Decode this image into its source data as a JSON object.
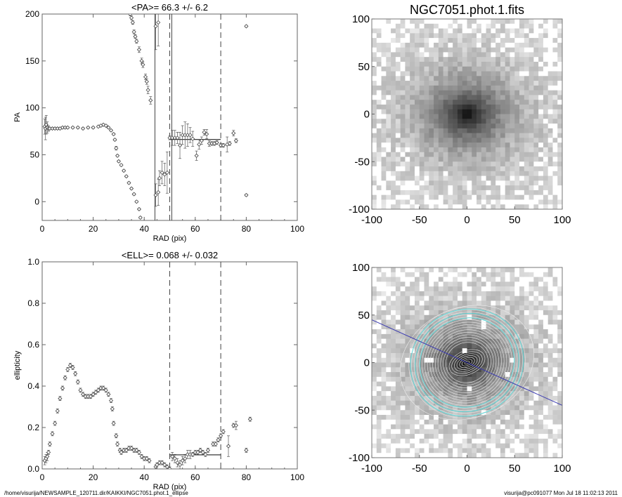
{
  "footer": {
    "path": "/home/visurija/NEWSAMPLE_120711.dir/KAIKKI/NGC7051.phot.1_ellipse",
    "stamp": "visurija@pc091077  Mon Jul 18 11:02:13 2011"
  },
  "chart_data": [
    {
      "id": "pa",
      "type": "scatter",
      "title": "<PA>=  66.3 +/-   6.2",
      "xlabel": "RAD (pix)",
      "ylabel": "PA",
      "xlim": [
        0,
        100
      ],
      "ylim": [
        -20,
        200
      ],
      "xticks": [
        "0",
        "20",
        "40",
        "60",
        "80",
        "100"
      ],
      "xtick_values": [
        0,
        20,
        40,
        60,
        80,
        100
      ],
      "yticks": [
        "0",
        "50",
        "100",
        "150",
        "200"
      ],
      "ytick_values": [
        0,
        50,
        100,
        150,
        200
      ],
      "vlines_solid": [
        44.2,
        50.8
      ],
      "vlines_dashed": [
        50,
        70
      ],
      "mean_line": {
        "x": [
          50,
          70
        ],
        "y": 66.3
      },
      "series": [
        {
          "name": "inner",
          "points": [
            [
              1,
              80,
              8
            ],
            [
              1.3,
              78,
              12
            ],
            [
              1.6,
              82,
              10
            ],
            [
              2,
              79,
              6
            ],
            [
              2.5,
              78,
              3
            ],
            [
              3,
              78,
              1
            ],
            [
              4,
              78,
              1
            ],
            [
              5,
              78,
              1
            ],
            [
              6,
              78,
              1
            ],
            [
              7,
              78,
              1
            ],
            [
              8,
              79,
              1
            ],
            [
              9,
              79,
              1
            ],
            [
              10,
              79,
              1
            ],
            [
              12,
              79,
              1
            ],
            [
              14,
              79,
              1
            ],
            [
              16,
              78,
              1
            ],
            [
              18,
              79,
              1
            ],
            [
              20,
              79,
              1
            ],
            [
              22,
              80,
              1
            ],
            [
              23,
              81,
              1
            ],
            [
              24,
              82,
              1
            ],
            [
              25,
              81,
              1
            ],
            [
              26,
              79,
              1
            ],
            [
              27,
              76,
              1
            ],
            [
              28,
              72,
              1
            ],
            [
              28.5,
              66,
              1
            ],
            [
              29,
              57,
              2
            ],
            [
              29.5,
              49,
              1
            ],
            [
              30,
              43,
              1
            ],
            [
              31,
              39,
              1
            ],
            [
              32,
              33,
              1
            ],
            [
              33,
              27,
              1
            ],
            [
              34,
              20,
              1
            ],
            [
              35,
              14,
              1
            ],
            [
              36,
              8,
              1
            ],
            [
              37,
              0,
              1
            ],
            [
              38,
              -8,
              1
            ],
            [
              38.5,
              -17,
              1
            ]
          ]
        },
        {
          "name": "wrap",
          "points": [
            [
              34.5,
              200,
              2
            ],
            [
              35,
              196,
              2
            ],
            [
              35.5,
              191,
              2
            ],
            [
              36,
              181,
              2
            ],
            [
              36.5,
              176,
              2
            ],
            [
              37,
              171,
              2
            ],
            [
              38,
              162,
              3
            ],
            [
              39,
              150,
              3
            ],
            [
              39.5,
              146,
              3
            ],
            [
              40.5,
              133,
              3
            ],
            [
              41,
              128,
              3
            ],
            [
              41.5,
              119,
              4
            ],
            [
              42.5,
              108,
              4
            ]
          ]
        },
        {
          "name": "outer",
          "points": [
            [
              44.5,
              7,
              12
            ],
            [
              45.5,
              10,
              14
            ],
            [
              46,
              25,
              8
            ],
            [
              47,
              31,
              12
            ],
            [
              48,
              29,
              12
            ],
            [
              49,
              31,
              22
            ],
            [
              44.5,
              187,
              25
            ],
            [
              45.5,
              191,
              25
            ],
            [
              50,
              68,
              2
            ],
            [
              51,
              68,
              8
            ],
            [
              52,
              68,
              8
            ],
            [
              53,
              68,
              6
            ],
            [
              54,
              60,
              14
            ],
            [
              55,
              71,
              10
            ],
            [
              56,
              71,
              14
            ],
            [
              57,
              71,
              12
            ],
            [
              58,
              71,
              8
            ],
            [
              59,
              67,
              8
            ],
            [
              60.5,
              49,
              5
            ],
            [
              61.5,
              61,
              5
            ],
            [
              62.5,
              65,
              4
            ],
            [
              63.5,
              74,
              3
            ],
            [
              64.5,
              72,
              5
            ],
            [
              65.5,
              62,
              3
            ],
            [
              66.5,
              62,
              2
            ],
            [
              67.5,
              62,
              2
            ],
            [
              68.5,
              63,
              2
            ],
            [
              70,
              60,
              2
            ],
            [
              71,
              60,
              2
            ],
            [
              72.5,
              61,
              8
            ],
            [
              73.5,
              62,
              2
            ],
            [
              75,
              73,
              3
            ],
            [
              76,
              65,
              2
            ],
            [
              80,
              187,
              1
            ],
            [
              80,
              7,
              1
            ]
          ]
        }
      ]
    },
    {
      "id": "ell",
      "type": "scatter",
      "title": "<ELL>= 0.068 +/-  0.032",
      "xlabel": "RAD (pix)",
      "ylabel": "ellipticity",
      "xlim": [
        0,
        100
      ],
      "ylim": [
        0,
        1
      ],
      "xticks": [
        "0",
        "20",
        "40",
        "60",
        "80",
        "100"
      ],
      "xtick_values": [
        0,
        20,
        40,
        60,
        80,
        100
      ],
      "yticks": [
        "0.0",
        "0.2",
        "0.4",
        "0.6",
        "0.8",
        "1.0"
      ],
      "ytick_values": [
        0,
        0.2,
        0.4,
        0.6,
        0.8,
        1.0
      ],
      "vlines_dashed": [
        50,
        70
      ],
      "mean_line": {
        "x": [
          50,
          70
        ],
        "y": 0.068
      },
      "series": [
        {
          "name": "ellipticity",
          "points": [
            [
              1,
              0.04,
              0.02
            ],
            [
              1.5,
              0.05,
              0.02
            ],
            [
              2,
              0.06,
              0.02
            ],
            [
              2.5,
              0.08,
              0.01
            ],
            [
              3,
              0.12,
              0.01
            ],
            [
              4,
              0.17,
              0.01
            ],
            [
              5,
              0.22,
              0.01
            ],
            [
              6,
              0.28,
              0.01
            ],
            [
              7,
              0.34,
              0.01
            ],
            [
              8,
              0.39,
              0.01
            ],
            [
              9,
              0.44,
              0.01
            ],
            [
              10,
              0.48,
              0.01
            ],
            [
              11,
              0.5,
              0.01
            ],
            [
              12,
              0.49,
              0.01
            ],
            [
              13,
              0.46,
              0.01
            ],
            [
              14,
              0.42,
              0.01
            ],
            [
              15,
              0.38,
              0.01
            ],
            [
              16,
              0.36,
              0.01
            ],
            [
              17,
              0.35,
              0.01
            ],
            [
              18,
              0.35,
              0.01
            ],
            [
              19,
              0.35,
              0.01
            ],
            [
              20,
              0.36,
              0.01
            ],
            [
              21,
              0.37,
              0.01
            ],
            [
              22,
              0.38,
              0.01
            ],
            [
              23,
              0.39,
              0.01
            ],
            [
              24,
              0.39,
              0.01
            ],
            [
              25,
              0.38,
              0.01
            ],
            [
              26,
              0.36,
              0.01
            ],
            [
              27,
              0.33,
              0.01
            ],
            [
              27.5,
              0.29,
              0.01
            ],
            [
              28,
              0.22,
              0.01
            ],
            [
              29,
              0.16,
              0.01
            ],
            [
              29.5,
              0.12,
              0.01
            ],
            [
              30.5,
              0.09,
              0.01
            ],
            [
              31,
              0.08,
              0.01
            ],
            [
              32,
              0.09,
              0.01
            ],
            [
              33,
              0.09,
              0.01
            ],
            [
              34,
              0.1,
              0.01
            ],
            [
              35,
              0.1,
              0.01
            ],
            [
              36,
              0.09,
              0.01
            ],
            [
              37,
              0.09,
              0.01
            ],
            [
              38,
              0.08,
              0.01
            ],
            [
              39,
              0.06,
              0.01
            ],
            [
              40,
              0.05,
              0.01
            ],
            [
              41,
              0.05,
              0.01
            ],
            [
              42,
              0.04,
              0.01
            ],
            [
              44.5,
              0.01,
              0.01
            ],
            [
              45,
              0.02,
              0.01
            ],
            [
              46,
              0.03,
              0.01
            ],
            [
              47,
              0.03,
              0.01
            ],
            [
              48,
              0.02,
              0.01
            ],
            [
              49,
              0.01,
              0.01
            ],
            [
              50,
              0.0,
              0.01
            ],
            [
              51,
              0.06,
              0.02
            ],
            [
              52,
              0.05,
              0.02
            ],
            [
              53,
              0.03,
              0.02
            ],
            [
              54,
              0.02,
              0.02
            ],
            [
              55,
              0.04,
              0.02
            ],
            [
              56,
              0.05,
              0.02
            ],
            [
              57,
              0.07,
              0.02
            ],
            [
              58,
              0.07,
              0.02
            ],
            [
              59,
              0.07,
              0.01
            ],
            [
              60,
              0.08,
              0.01
            ],
            [
              61,
              0.08,
              0.01
            ],
            [
              62,
              0.09,
              0.01
            ],
            [
              63,
              0.08,
              0.01
            ],
            [
              64,
              0.07,
              0.01
            ],
            [
              65,
              0.09,
              0.01
            ],
            [
              67,
              0.12,
              0.01
            ],
            [
              68,
              0.12,
              0.01
            ],
            [
              69,
              0.14,
              0.01
            ],
            [
              70,
              0.16,
              0.01
            ],
            [
              71,
              0.18,
              0.01
            ],
            [
              73,
              0.11,
              0.05
            ],
            [
              75,
              0.21,
              0.01
            ],
            [
              76,
              0.21,
              0.02
            ],
            [
              80,
              0.09,
              0.01
            ],
            [
              81.5,
              0.24,
              0.01
            ]
          ]
        }
      ]
    },
    {
      "id": "img1",
      "type": "heatmap",
      "title": "NGC7051.phot.1.fits",
      "xlim": [
        -100,
        100
      ],
      "ylim": [
        -100,
        100
      ],
      "xticks": [
        "-100",
        "-50",
        "0",
        "50",
        "100"
      ],
      "yticks": [
        "100",
        "50",
        "0",
        "-50",
        "-100"
      ],
      "center_peak": [
        0,
        0
      ]
    },
    {
      "id": "img2",
      "type": "heatmap",
      "title": "",
      "xlim": [
        -100,
        100
      ],
      "ylim": [
        -100,
        100
      ],
      "xticks": [
        "-100",
        "-50",
        "0",
        "50",
        "100"
      ],
      "yticks": [
        "100",
        "50",
        "0",
        "-50",
        "-100"
      ],
      "major_axis_line": {
        "x": [
          -100,
          100
        ],
        "y": [
          45,
          -45
        ]
      },
      "colors": {
        "axis_line": "#3a3ab0",
        "outer_ellipse": "#5fd8d8",
        "contour": "#e8e8e8"
      }
    }
  ]
}
